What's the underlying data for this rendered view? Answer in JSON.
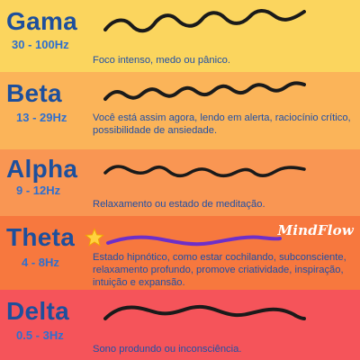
{
  "brand": {
    "logo_text": "MindFlow"
  },
  "bands": [
    {
      "id": "gama",
      "name": "Gama",
      "range": "30 - 100Hz",
      "description": "Foco intenso, medo ou pânico.",
      "bg": "#fbd55e",
      "wave_color": "#1a1a1a"
    },
    {
      "id": "beta",
      "name": "Beta",
      "range": "13 - 29Hz",
      "description": "Você está assim agora, lendo em alerta, raciocínio crítico, possibilidade de ansiedade.",
      "bg": "#fbb459",
      "wave_color": "#1a1a1a"
    },
    {
      "id": "alpha",
      "name": "Alpha",
      "range": "9 - 12Hz",
      "description": "Relaxamento ou estado de meditação.",
      "bg": "#f99653",
      "wave_color": "#1a1a1a"
    },
    {
      "id": "theta",
      "name": "Theta",
      "range": "4 - 8Hz",
      "description": "Estado hipnótico, como estar cochilando, subconsciente, relaxamento profundo, promove criatividade, inspiração, intuição e expansão.",
      "bg": "#f7783e",
      "wave_color": "#6d2fc9"
    },
    {
      "id": "delta",
      "name": "Delta",
      "range": "0.5 - 3Hz",
      "description": "Sono produndo ou inconsciência.",
      "bg": "#f5545a",
      "wave_color": "#1a1a1a"
    }
  ],
  "icons": {
    "theta_marker": "star-icon"
  }
}
